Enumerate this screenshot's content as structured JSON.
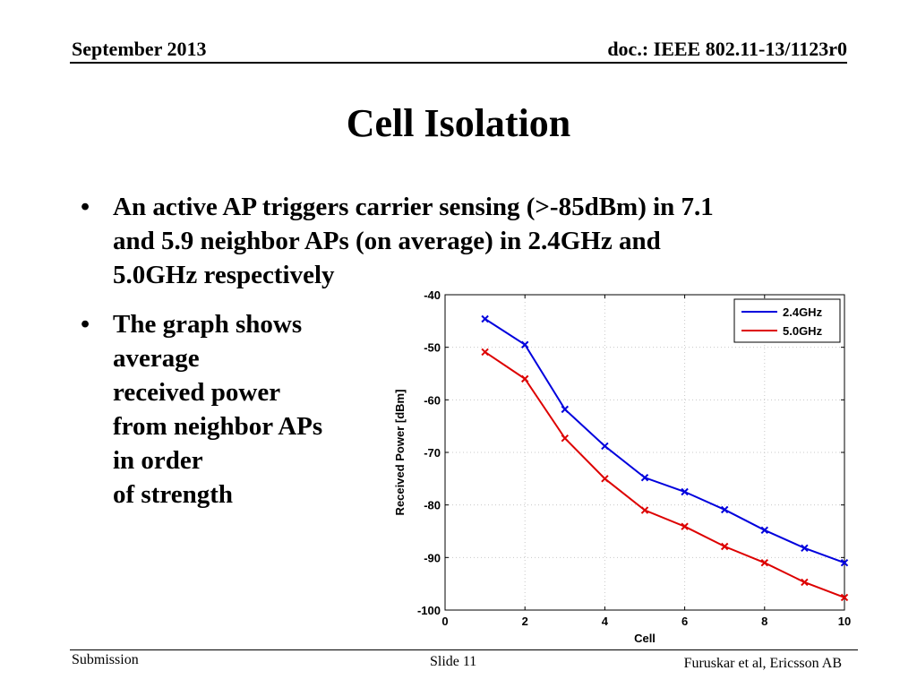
{
  "header": {
    "date": "September 2013",
    "doc": "doc.: IEEE 802.11-13/1123r0"
  },
  "title": "Cell Isolation",
  "bullets": [
    {
      "symbol": "•",
      "text": "An active AP triggers carrier sensing (>-85dBm) in 7.1\nand 5.9 neighbor APs (on average) in 2.4GHz and\n5.0GHz respectively"
    },
    {
      "symbol": "•",
      "text": "The graph shows\naverage\nreceived power\nfrom neighbor APs\nin order\nof strength"
    }
  ],
  "chart_data": {
    "type": "line",
    "xlabel": "Cell",
    "ylabel": "Received Power [dBm]",
    "xlim": [
      0,
      10
    ],
    "ylim": [
      -100,
      -40
    ],
    "xticks": [
      0,
      2,
      4,
      6,
      8,
      10
    ],
    "yticks": [
      -40,
      -50,
      -60,
      -70,
      -80,
      -90,
      -100
    ],
    "grid": true,
    "legend_position": "top-right",
    "marker": "x",
    "series": [
      {
        "name": "2.4GHz",
        "color": "#0000dd",
        "x": [
          1,
          2,
          3,
          4,
          5,
          6,
          7,
          8,
          9,
          10
        ],
        "y": [
          -44.6,
          -49.5,
          -61.8,
          -68.8,
          -74.8,
          -77.5,
          -80.9,
          -84.8,
          -88.2,
          -91.0
        ]
      },
      {
        "name": "5.0GHz",
        "color": "#dd0000",
        "x": [
          1,
          2,
          3,
          4,
          5,
          6,
          7,
          8,
          9,
          10
        ],
        "y": [
          -50.9,
          -56.0,
          -67.3,
          -75.0,
          -81.0,
          -84.1,
          -87.9,
          -91.0,
          -94.7,
          -97.6
        ]
      }
    ]
  },
  "footer": {
    "left": "Submission",
    "center": "Slide 11",
    "right": "Furuskar et al, Ericsson AB"
  }
}
